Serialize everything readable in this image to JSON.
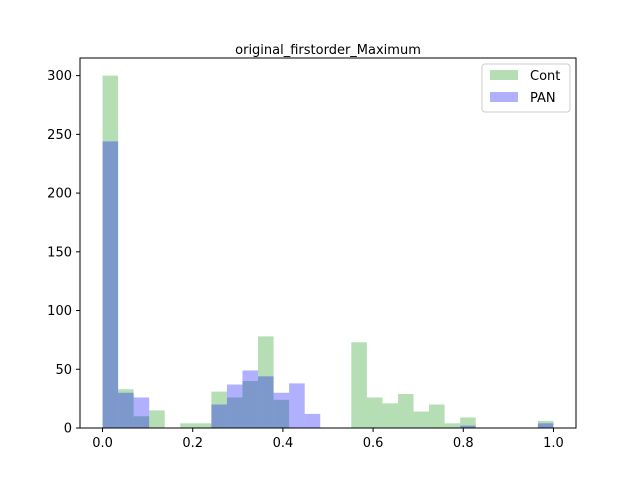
{
  "chart_data": {
    "type": "bar",
    "title": "original_firstorder_Maximum",
    "xlabel": "",
    "ylabel": "",
    "xlim": [
      -0.05,
      1.05
    ],
    "ylim": [
      0,
      315
    ],
    "xticks": [
      0.0,
      0.2,
      0.4,
      0.6,
      0.8,
      1.0
    ],
    "xtick_labels": [
      "0.0",
      "0.2",
      "0.4",
      "0.6",
      "0.8",
      "1.0"
    ],
    "yticks": [
      0,
      50,
      100,
      150,
      200,
      250,
      300
    ],
    "ytick_labels": [
      "0",
      "50",
      "100",
      "150",
      "200",
      "250",
      "300"
    ],
    "grid": false,
    "legend_position": "top-right",
    "series": [
      {
        "name": "Cont",
        "color": "#2ca02c",
        "opacity": 0.35,
        "bins": [
          {
            "x0": 0.0,
            "x1": 0.0345,
            "count": 300
          },
          {
            "x0": 0.0345,
            "x1": 0.069,
            "count": 33
          },
          {
            "x0": 0.069,
            "x1": 0.1034,
            "count": 10
          },
          {
            "x0": 0.1034,
            "x1": 0.1379,
            "count": 15
          },
          {
            "x0": 0.1724,
            "x1": 0.2069,
            "count": 4
          },
          {
            "x0": 0.2069,
            "x1": 0.2414,
            "count": 4
          },
          {
            "x0": 0.2414,
            "x1": 0.2759,
            "count": 31
          },
          {
            "x0": 0.2759,
            "x1": 0.3103,
            "count": 26
          },
          {
            "x0": 0.3103,
            "x1": 0.3448,
            "count": 40
          },
          {
            "x0": 0.3448,
            "x1": 0.3793,
            "count": 78
          },
          {
            "x0": 0.3793,
            "x1": 0.4138,
            "count": 24
          },
          {
            "x0": 0.5517,
            "x1": 0.5862,
            "count": 73
          },
          {
            "x0": 0.5862,
            "x1": 0.6207,
            "count": 26
          },
          {
            "x0": 0.6207,
            "x1": 0.6552,
            "count": 21
          },
          {
            "x0": 0.6552,
            "x1": 0.6897,
            "count": 29
          },
          {
            "x0": 0.6897,
            "x1": 0.7241,
            "count": 14
          },
          {
            "x0": 0.7241,
            "x1": 0.7586,
            "count": 20
          },
          {
            "x0": 0.7586,
            "x1": 0.7931,
            "count": 4
          },
          {
            "x0": 0.7931,
            "x1": 0.8276,
            "count": 9
          },
          {
            "x0": 0.9655,
            "x1": 1.0,
            "count": 6
          }
        ]
      },
      {
        "name": "PAN",
        "color": "#0000ff",
        "opacity": 0.31,
        "bins": [
          {
            "x0": 0.0,
            "x1": 0.0345,
            "count": 244
          },
          {
            "x0": 0.0345,
            "x1": 0.069,
            "count": 30
          },
          {
            "x0": 0.069,
            "x1": 0.1034,
            "count": 26
          },
          {
            "x0": 0.2414,
            "x1": 0.2759,
            "count": 20
          },
          {
            "x0": 0.2759,
            "x1": 0.3103,
            "count": 37
          },
          {
            "x0": 0.3103,
            "x1": 0.3448,
            "count": 49
          },
          {
            "x0": 0.3448,
            "x1": 0.3793,
            "count": 44
          },
          {
            "x0": 0.3793,
            "x1": 0.4138,
            "count": 30
          },
          {
            "x0": 0.4138,
            "x1": 0.4483,
            "count": 38
          },
          {
            "x0": 0.4483,
            "x1": 0.4828,
            "count": 12
          },
          {
            "x0": 0.7931,
            "x1": 0.8276,
            "count": 2
          },
          {
            "x0": 0.9655,
            "x1": 1.0,
            "count": 4
          }
        ]
      }
    ]
  }
}
